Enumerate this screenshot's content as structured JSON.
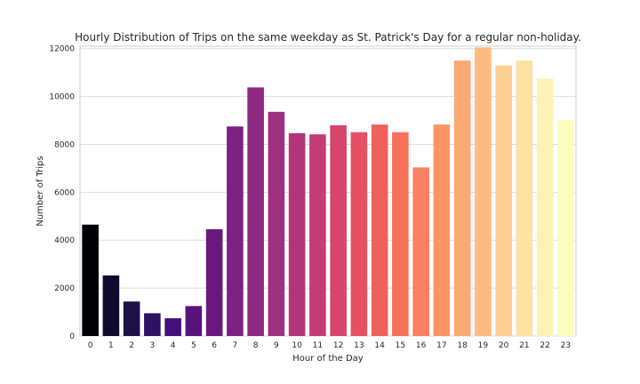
{
  "chart_data": {
    "type": "bar",
    "title": "Hourly Distribution of Trips on the same weekday as St. Patrick's Day for a regular non-holiday.",
    "xlabel": "Hour of the Day",
    "ylabel": "Number of Trips",
    "categories": [
      "0",
      "1",
      "2",
      "3",
      "4",
      "5",
      "6",
      "7",
      "8",
      "9",
      "10",
      "11",
      "12",
      "13",
      "14",
      "15",
      "16",
      "17",
      "18",
      "19",
      "20",
      "21",
      "22",
      "23"
    ],
    "values": [
      4650,
      2530,
      1440,
      950,
      740,
      1250,
      4460,
      8750,
      10380,
      9360,
      8470,
      8420,
      8800,
      8510,
      8830,
      8510,
      7040,
      8830,
      11500,
      12050,
      11300,
      11500,
      10750,
      9020
    ],
    "ylim": [
      0,
      12100
    ],
    "yticks": [
      0,
      2000,
      4000,
      6000,
      8000,
      10000,
      12000
    ],
    "ytick_labels": [
      "0",
      "2000",
      "4000",
      "6000",
      "8000",
      "10000",
      "12000"
    ],
    "grid": "y",
    "palette": "magma",
    "colors": [
      "#000004",
      "#100b2e",
      "#1d1147",
      "#2f1163",
      "#440f76",
      "#56137d",
      "#681a81",
      "#7a2182",
      "#8c2981",
      "#9f2f7f",
      "#b2357b",
      "#c43c75",
      "#d6456c",
      "#e55064",
      "#f0605d",
      "#f6705c",
      "#fa815f",
      "#fd9567",
      "#fea873",
      "#febb81",
      "#fecf92",
      "#fde2a3",
      "#fcf2b5",
      "#fcfdbf"
    ]
  }
}
